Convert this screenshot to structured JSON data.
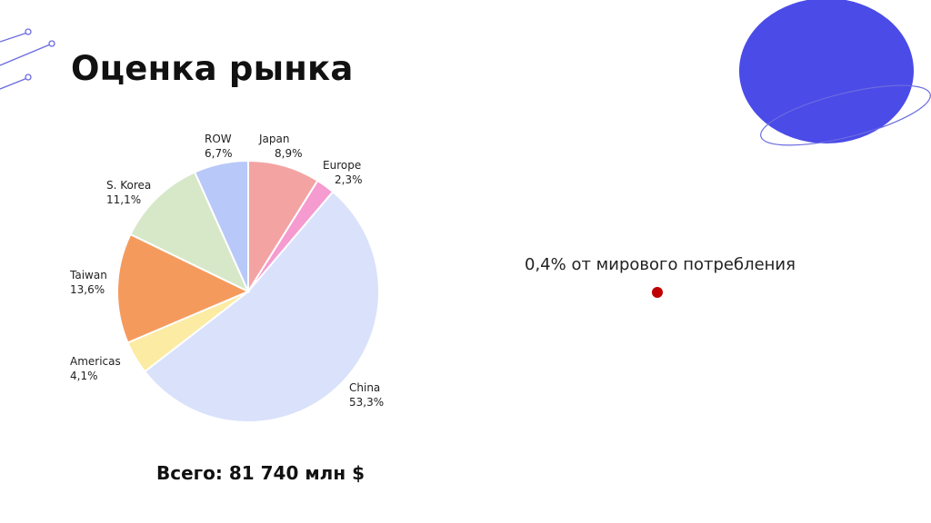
{
  "slide": {
    "title": "Оценка рынка",
    "total": "Всего: 81 740 млн $",
    "note": "0,4% от мирового потребления"
  },
  "colors": {
    "accent_blue": "#4B4BE8",
    "line_accent": "#6B6BE0",
    "dot_red": "#C00000"
  },
  "chart_data": {
    "type": "pie",
    "title": "",
    "slices": [
      {
        "label": "Japan",
        "pct_text": "8,9%",
        "value": 8.9,
        "color": "#F4A3A3"
      },
      {
        "label": "Europe",
        "pct_text": "2,3%",
        "value": 2.3,
        "color": "#F59BD0"
      },
      {
        "label": "China",
        "pct_text": "53,3%",
        "value": 53.3,
        "color": "#D9E1FB"
      },
      {
        "label": "Americas",
        "pct_text": "4,1%",
        "value": 4.1,
        "color": "#FCEBA3"
      },
      {
        "label": "Taiwan",
        "pct_text": "13,6%",
        "value": 13.6,
        "color": "#F59A5D"
      },
      {
        "label": "S. Korea",
        "pct_text": "11,1%",
        "value": 11.1,
        "color": "#D6E8C8"
      },
      {
        "label": "ROW",
        "pct_text": "6,7%",
        "value": 6.7,
        "color": "#B8C8F8"
      }
    ]
  }
}
